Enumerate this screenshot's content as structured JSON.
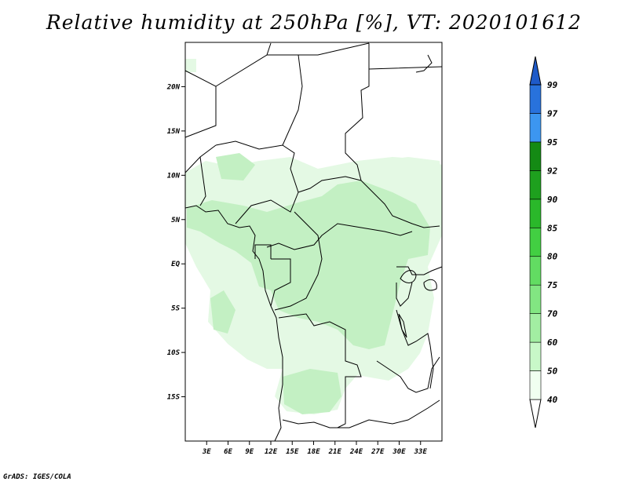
{
  "title": "Relative humidity at 250hPa [%], VT: 2020101612",
  "credit": "GrADS: IGES/COLA",
  "map": {
    "lon_range": [
      0,
      36
    ],
    "lat_range": [
      -20,
      25
    ],
    "lat_labels": [
      {
        "lat": 20,
        "text": "20N"
      },
      {
        "lat": 15,
        "text": "15N"
      },
      {
        "lat": 10,
        "text": "10N"
      },
      {
        "lat": 5,
        "text": "5N"
      },
      {
        "lat": 0,
        "text": "EQ"
      },
      {
        "lat": -5,
        "text": "5S"
      },
      {
        "lat": -10,
        "text": "10S"
      },
      {
        "lat": -15,
        "text": "15S"
      }
    ],
    "lon_labels": [
      {
        "lon": 3,
        "text": "3E"
      },
      {
        "lon": 6,
        "text": "6E"
      },
      {
        "lon": 9,
        "text": "9E"
      },
      {
        "lon": 12,
        "text": "12E"
      },
      {
        "lon": 15,
        "text": "15E"
      },
      {
        "lon": 18,
        "text": "18E"
      },
      {
        "lon": 21,
        "text": "21E"
      },
      {
        "lon": 24,
        "text": "24E"
      },
      {
        "lon": 27,
        "text": "27E"
      },
      {
        "lon": 30,
        "text": "30E"
      },
      {
        "lon": 33,
        "text": "33E"
      }
    ]
  },
  "colorbar": {
    "segments": [
      {
        "color": "#f0fff0"
      },
      {
        "color": "#c8f8c8"
      },
      {
        "color": "#a2eea2"
      },
      {
        "color": "#82e682"
      },
      {
        "color": "#62dc62"
      },
      {
        "color": "#42cf42"
      },
      {
        "color": "#2ab82a"
      },
      {
        "color": "#1ea01e"
      },
      {
        "color": "#148a14"
      },
      {
        "color": "#3c96f0"
      },
      {
        "color": "#2872dc"
      }
    ],
    "top_color": "#1e5ac8",
    "labels": [
      "99",
      "97",
      "95",
      "92",
      "90",
      "85",
      "80",
      "75",
      "70",
      "60",
      "50",
      "40"
    ]
  },
  "colors": {
    "humidity_light": "#e4f9e4",
    "humidity_medium": "#c3f0c3",
    "border": "#000000"
  }
}
